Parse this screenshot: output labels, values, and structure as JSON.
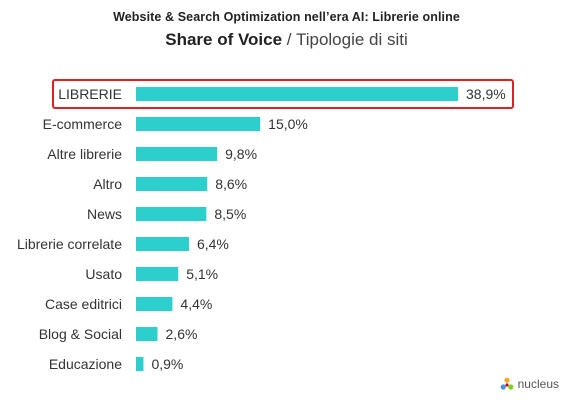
{
  "header": {
    "kicker": "Website & Search Optimization nell’era AI: Librerie online",
    "title_main": "Share of Voice",
    "title_sep": " / ",
    "title_sub": "Tipologie di siti"
  },
  "chart_data": {
    "type": "bar",
    "orientation": "horizontal",
    "categories": [
      "LIBRERIE",
      "E-commerce",
      "Altre librerie",
      "Altro",
      "News",
      "Librerie correlate",
      "Usato",
      "Case editrici",
      "Blog & Social",
      "Educazione"
    ],
    "values": [
      38.9,
      15.0,
      9.8,
      8.6,
      8.5,
      6.4,
      5.1,
      4.4,
      2.6,
      0.9
    ],
    "value_labels": [
      "38,9%",
      "15,0%",
      "9,8%",
      "8,6%",
      "8,5%",
      "6,4%",
      "5,1%",
      "4,4%",
      "2,6%",
      "0,9%"
    ],
    "unit": "%",
    "highlighted_category": "LIBRERIE",
    "grid": false,
    "legend": "none",
    "xlim": [
      0,
      38.9
    ]
  },
  "colors": {
    "bar": "#2ccfcb",
    "highlight_border": "#e02020",
    "text": "#333333"
  },
  "logo": {
    "icon": "nucleus-logo-icon",
    "text": "nucleus"
  }
}
